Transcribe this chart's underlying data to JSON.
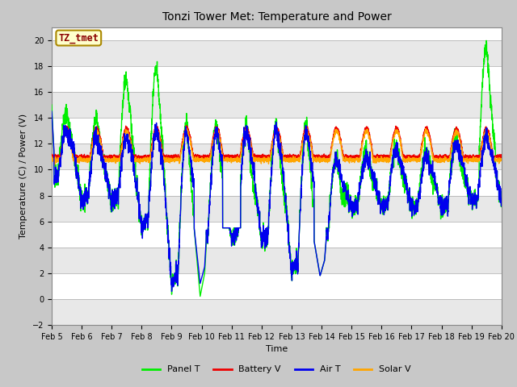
{
  "title": "Tonzi Tower Met: Temperature and Power",
  "ylabel": "Temperature (C) / Power (V)",
  "xlabel": "Time",
  "xlim": [
    5,
    20
  ],
  "ylim": [
    -2,
    21
  ],
  "yticks": [
    -2,
    0,
    2,
    4,
    6,
    8,
    10,
    12,
    14,
    16,
    18,
    20
  ],
  "xtick_labels": [
    "Feb 5",
    "Feb 6",
    "Feb 7",
    "Feb 8",
    "Feb 9",
    "Feb 10",
    "Feb 11",
    "Feb 12",
    "Feb 13",
    "Feb 14",
    "Feb 15",
    "Feb 16",
    "Feb 17",
    "Feb 18",
    "Feb 19",
    "Feb 20"
  ],
  "xtick_positions": [
    5,
    6,
    7,
    8,
    9,
    10,
    11,
    12,
    13,
    14,
    15,
    16,
    17,
    18,
    19,
    20
  ],
  "annotation_text": "TZ_tmet",
  "annotation_color": "#8B0000",
  "annotation_bg": "#FFFFCC",
  "annotation_edge": "#AA8800",
  "legend_entries": [
    "Panel T",
    "Battery V",
    "Air T",
    "Solar V"
  ],
  "colors": {
    "panel_t": "#00EE00",
    "battery_v": "#EE0000",
    "air_t": "#0000EE",
    "solar_v": "#FFA500"
  },
  "fig_bg": "#C8C8C8",
  "plot_bg": "#FFFFFF",
  "grid_color": "#D0D0D0",
  "linewidth": 1.0,
  "title_fontsize": 10,
  "axis_fontsize": 8,
  "tick_fontsize": 7,
  "legend_fontsize": 8
}
